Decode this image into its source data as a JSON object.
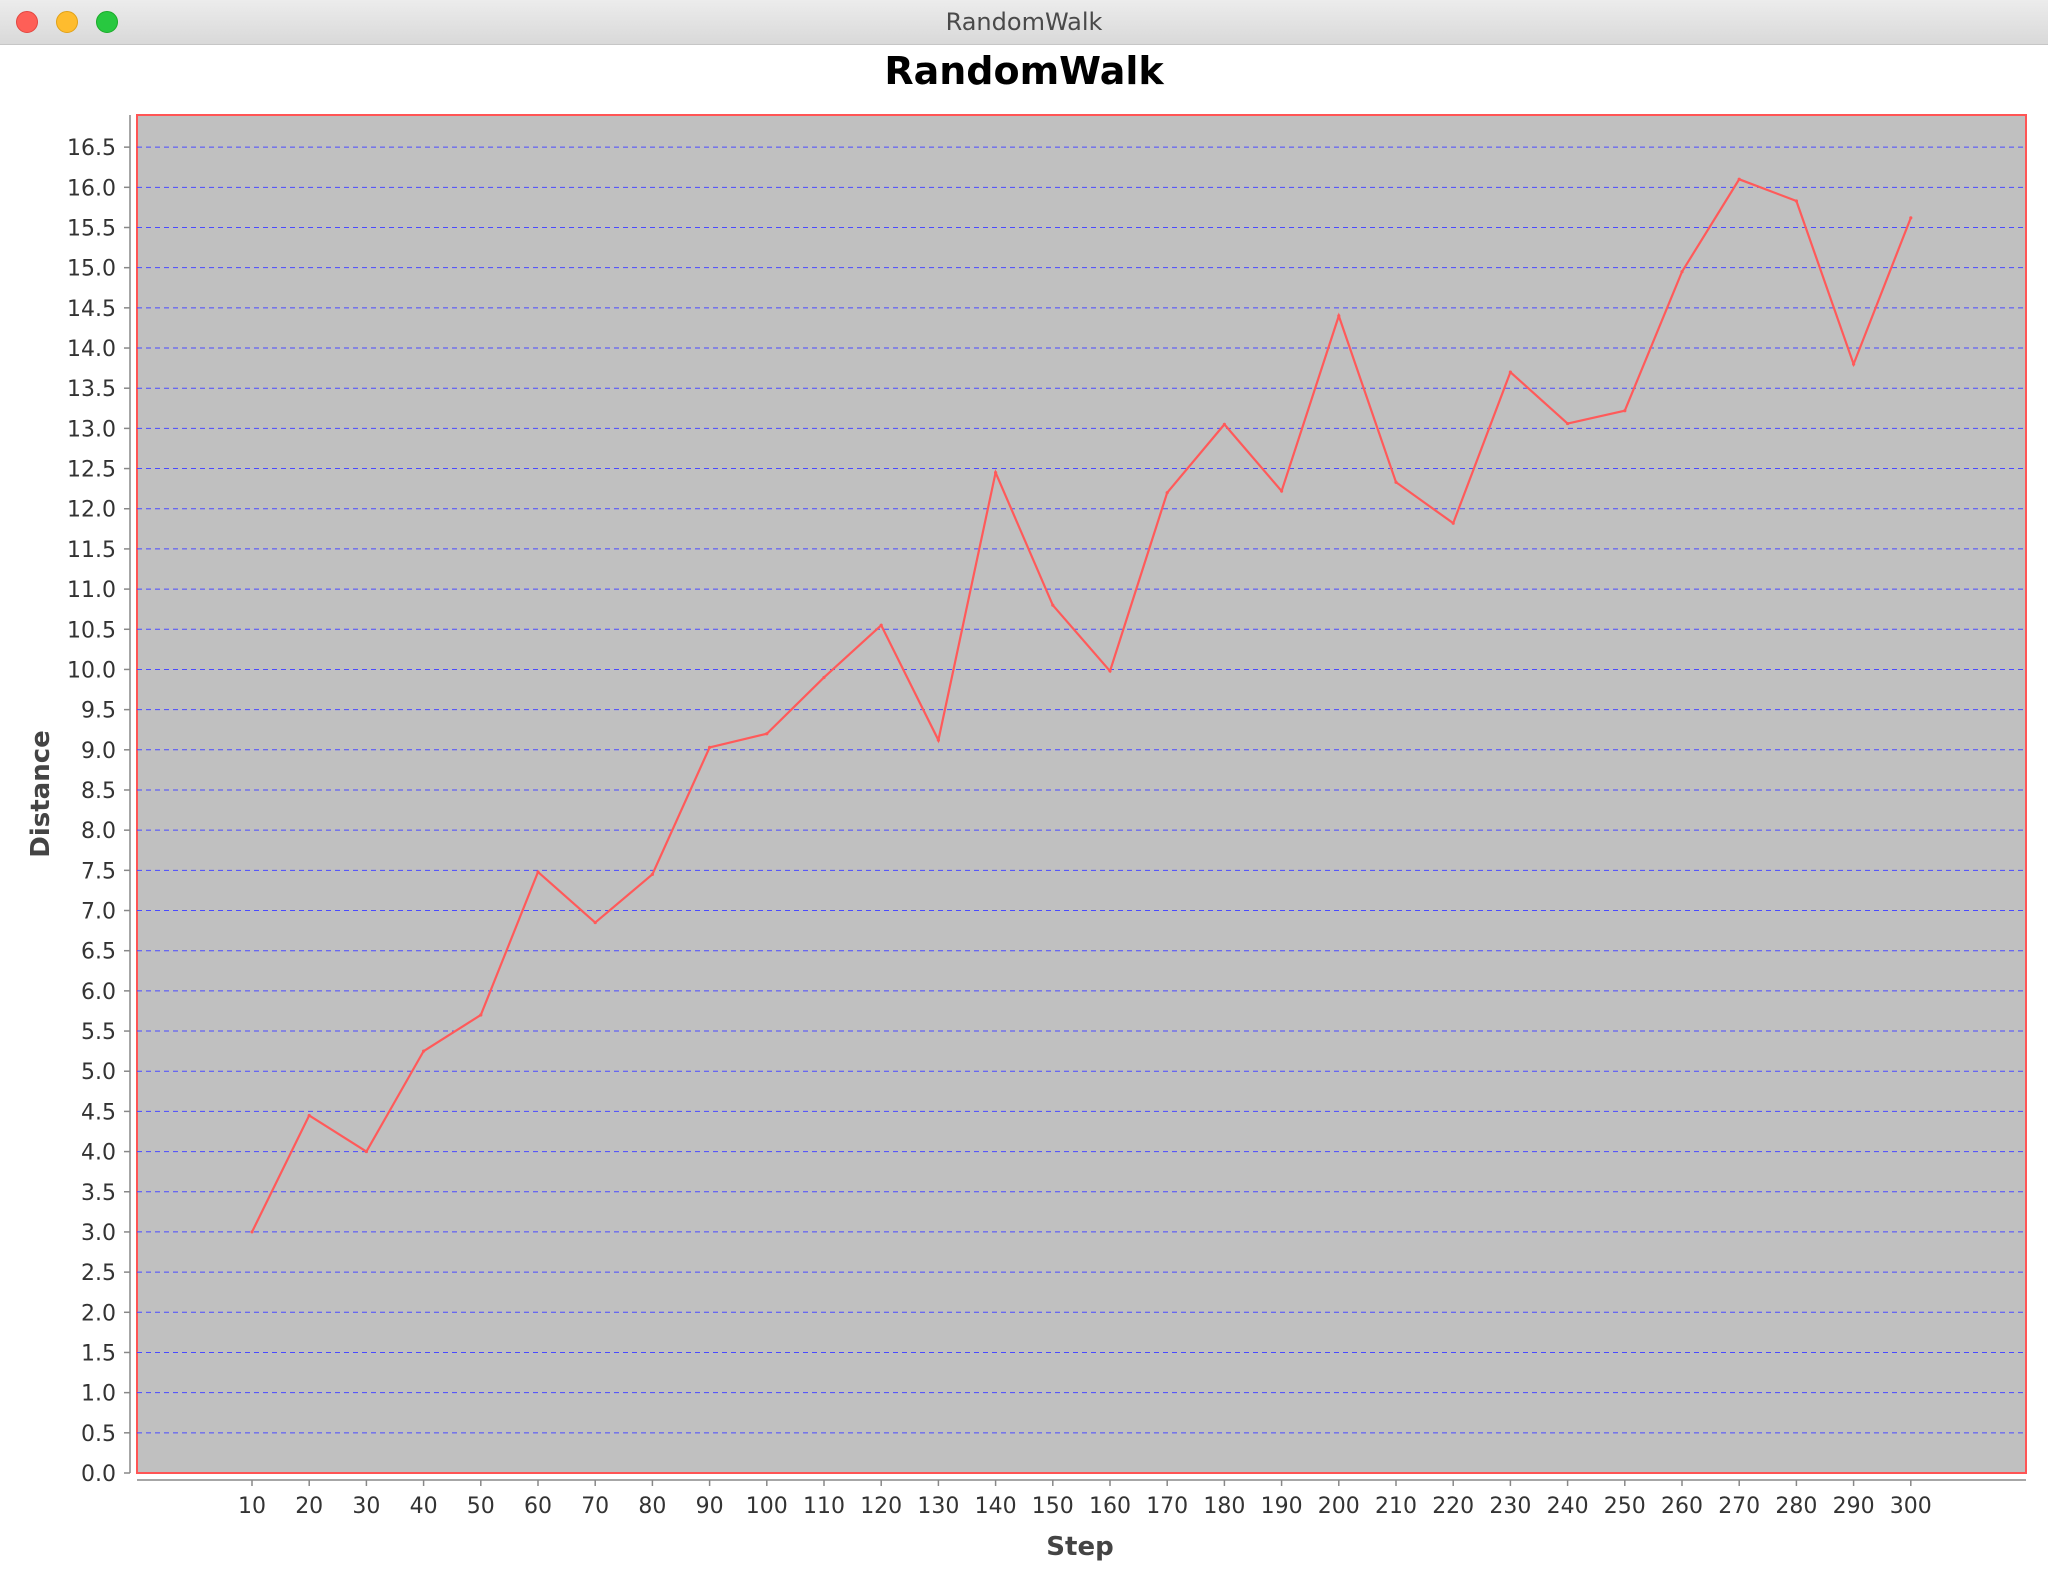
{
  "window": {
    "title": "RandomWalk"
  },
  "colors": {
    "plot_background": "#c0c0c0",
    "plot_border": "#ff5555",
    "gridline": "#4a4aff",
    "series": "#ff5a5a"
  },
  "chart_data": {
    "type": "line",
    "title": "RandomWalk",
    "xlabel": "Step",
    "ylabel": "Distance",
    "ylim": [
      0,
      16.9
    ],
    "grid": true,
    "x": [
      10,
      20,
      30,
      40,
      50,
      60,
      70,
      80,
      90,
      100,
      110,
      120,
      130,
      140,
      150,
      160,
      170,
      180,
      190,
      200,
      210,
      220,
      230,
      240,
      250,
      260,
      270,
      280,
      290,
      300
    ],
    "x_ticks": [
      "10",
      "20",
      "30",
      "40",
      "50",
      "60",
      "70",
      "80",
      "90",
      "100",
      "110",
      "120",
      "130",
      "140",
      "150",
      "160",
      "170",
      "180",
      "190",
      "200",
      "210",
      "220",
      "230",
      "240",
      "250",
      "260",
      "270",
      "280",
      "290",
      "300"
    ],
    "y_ticks": [
      "0.0",
      "0.5",
      "1.0",
      "1.5",
      "2.0",
      "2.5",
      "3.0",
      "3.5",
      "4.0",
      "4.5",
      "5.0",
      "5.5",
      "6.0",
      "6.5",
      "7.0",
      "7.5",
      "8.0",
      "8.5",
      "9.0",
      "9.5",
      "10.0",
      "10.5",
      "11.0",
      "11.5",
      "12.0",
      "12.5",
      "13.0",
      "13.5",
      "14.0",
      "14.5",
      "15.0",
      "15.5",
      "16.0",
      "16.5"
    ],
    "series": [
      {
        "values": [
          3.0,
          4.45,
          4.0,
          5.25,
          5.7,
          7.48,
          6.85,
          7.45,
          9.03,
          9.2,
          9.9,
          10.55,
          9.12,
          12.45,
          10.8,
          9.98,
          12.2,
          13.05,
          12.22,
          14.4,
          12.33,
          11.82,
          13.7,
          13.06,
          13.22,
          14.95,
          16.1,
          15.83,
          13.8,
          15.62
        ]
      }
    ]
  }
}
